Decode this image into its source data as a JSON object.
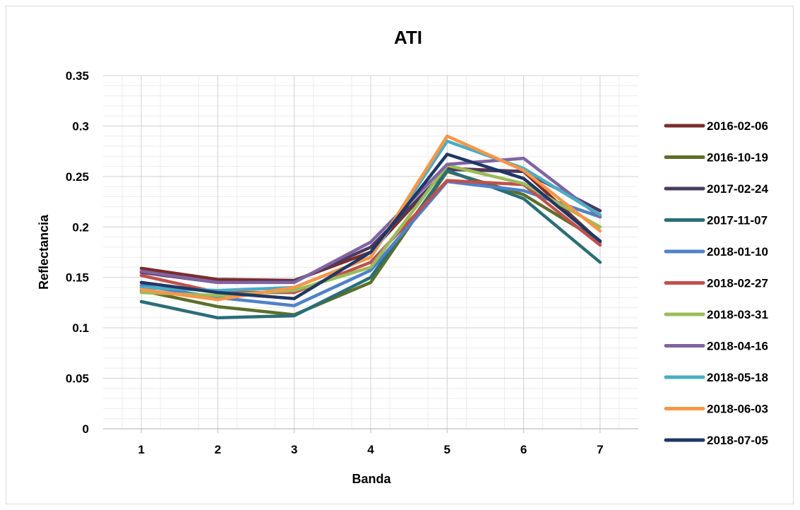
{
  "chart_data": {
    "type": "line",
    "title": "ATI",
    "xlabel": "Banda",
    "ylabel": "Reflectancia",
    "x": [
      1,
      2,
      3,
      4,
      5,
      6,
      7
    ],
    "ylim": [
      0,
      0.35
    ],
    "yticks": [
      "0",
      "0.05",
      "0.1",
      "0.15",
      "0.2",
      "0.25",
      "0.3",
      "0.35"
    ],
    "xticks": [
      "1",
      "2",
      "3",
      "4",
      "5",
      "6",
      "7"
    ],
    "grid": true,
    "legend_position": "right",
    "series": [
      {
        "name": "2016-02-06",
        "color": "#7b2c2c",
        "values": [
          0.159,
          0.148,
          0.147,
          0.175,
          0.258,
          0.255,
          0.185
        ]
      },
      {
        "name": "2016-10-19",
        "color": "#5c6f2a",
        "values": [
          0.137,
          0.121,
          0.113,
          0.145,
          0.255,
          0.232,
          0.186
        ]
      },
      {
        "name": "2017-02-24",
        "color": "#4b3a5e",
        "values": [
          0.155,
          0.145,
          0.146,
          0.18,
          0.257,
          0.255,
          0.216
        ]
      },
      {
        "name": "2017-11-07",
        "color": "#2a6e77",
        "values": [
          0.126,
          0.11,
          0.112,
          0.15,
          0.256,
          0.228,
          0.165
        ]
      },
      {
        "name": "2018-01-10",
        "color": "#4f81c7",
        "values": [
          0.142,
          0.13,
          0.122,
          0.157,
          0.245,
          0.236,
          0.21
        ]
      },
      {
        "name": "2018-02-27",
        "color": "#c0504d",
        "values": [
          0.152,
          0.135,
          0.135,
          0.165,
          0.246,
          0.242,
          0.182
        ]
      },
      {
        "name": "2018-03-31",
        "color": "#9bbb59",
        "values": [
          0.135,
          0.132,
          0.137,
          0.16,
          0.261,
          0.243,
          0.2
        ]
      },
      {
        "name": "2018-04-16",
        "color": "#8064a2",
        "values": [
          0.156,
          0.145,
          0.145,
          0.185,
          0.262,
          0.268,
          0.21
        ]
      },
      {
        "name": "2018-05-18",
        "color": "#4bacc6",
        "values": [
          0.14,
          0.137,
          0.14,
          0.17,
          0.285,
          0.258,
          0.212
        ]
      },
      {
        "name": "2018-06-03",
        "color": "#f79646",
        "values": [
          0.138,
          0.128,
          0.14,
          0.17,
          0.29,
          0.256,
          0.196
        ]
      },
      {
        "name": "2018-07-05",
        "color": "#1f3864",
        "values": [
          0.145,
          0.135,
          0.129,
          0.175,
          0.272,
          0.248,
          0.186
        ]
      }
    ]
  }
}
